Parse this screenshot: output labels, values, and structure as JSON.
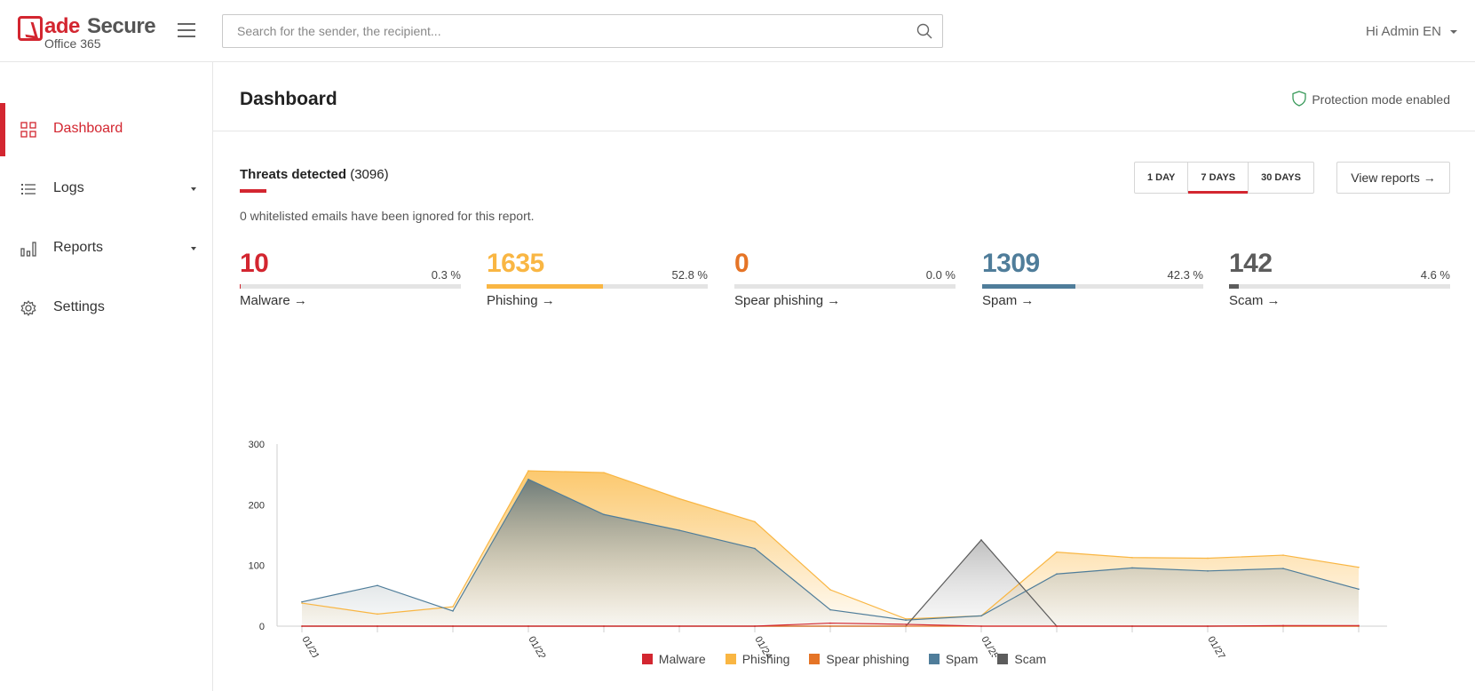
{
  "header": {
    "logo_primary": "ade",
    "logo_secondary": "Secure",
    "logo_sub": "Office 365",
    "search_placeholder": "Search for the sender, the recipient...",
    "user_greeting": "Hi Admin EN"
  },
  "sidebar": {
    "items": [
      {
        "label": "Dashboard",
        "icon": "grid-icon",
        "active": true
      },
      {
        "label": "Logs",
        "icon": "list-icon",
        "active": false
      },
      {
        "label": "Reports",
        "icon": "bar-chart-icon",
        "active": false
      },
      {
        "label": "Settings",
        "icon": "gear-icon",
        "active": false
      }
    ]
  },
  "page": {
    "title": "Dashboard",
    "protection_status": "Protection mode enabled",
    "threats_label": "Threats detected",
    "threats_total": "(3096)",
    "whitelist_note": "0 whitelisted emails have been ignored for this report.",
    "periods": [
      "1 DAY",
      "7 DAYS",
      "30 DAYS"
    ],
    "active_period": "7 DAYS",
    "view_reports": "View reports →"
  },
  "stats": [
    {
      "count": "10",
      "pct": "0.3 %",
      "label": "Malware →",
      "color": "#d32630",
      "fraction": 0.003
    },
    {
      "count": "1635",
      "pct": "52.8 %",
      "label": "Phishing →",
      "color": "#f9b643",
      "fraction": 0.528
    },
    {
      "count": "0",
      "pct": "0.0 %",
      "label": "Spear phishing →",
      "color": "#e57426",
      "fraction": 0.0
    },
    {
      "count": "1309",
      "pct": "42.3 %",
      "label": "Spam →",
      "color": "#4f7d9a",
      "fraction": 0.423
    },
    {
      "count": "142",
      "pct": "4.6 %",
      "label": "Scam →",
      "color": "#5c5c5c",
      "fraction": 0.046
    }
  ],
  "chart_data": {
    "type": "area",
    "ylim": [
      0,
      300
    ],
    "yticks": [
      0,
      100,
      200,
      300
    ],
    "xtick_labels": [
      "01/21/2019...",
      "01/22/2019...",
      "01/24/2019...",
      "01/25/2019...",
      "01/27/2019..."
    ],
    "xtick_label_indices": [
      0,
      3,
      6,
      9,
      12
    ],
    "n_points": 15,
    "grid": false,
    "legend_position": "bottom",
    "series": [
      {
        "name": "Malware",
        "color": "#d32630",
        "values": [
          0,
          0,
          0,
          0,
          0,
          0,
          0,
          5,
          3,
          0,
          0,
          0,
          0,
          1,
          1
        ]
      },
      {
        "name": "Phishing",
        "color": "#f9b643",
        "values": [
          38,
          20,
          32,
          256,
          253,
          210,
          172,
          60,
          12,
          17,
          122,
          113,
          112,
          117,
          97
        ]
      },
      {
        "name": "Spear phishing",
        "color": "#e57426",
        "values": [
          0,
          0,
          0,
          0,
          0,
          0,
          0,
          0,
          0,
          0,
          0,
          0,
          0,
          0,
          0
        ]
      },
      {
        "name": "Spam",
        "color": "#4f7d9a",
        "values": [
          40,
          67,
          25,
          242,
          184,
          158,
          128,
          27,
          10,
          17,
          86,
          96,
          91,
          95,
          61
        ]
      },
      {
        "name": "Scam",
        "color": "#5c5c5c",
        "values": [
          0,
          0,
          0,
          0,
          0,
          0,
          0,
          0,
          0,
          142,
          0,
          0,
          0,
          0,
          0
        ]
      }
    ]
  }
}
